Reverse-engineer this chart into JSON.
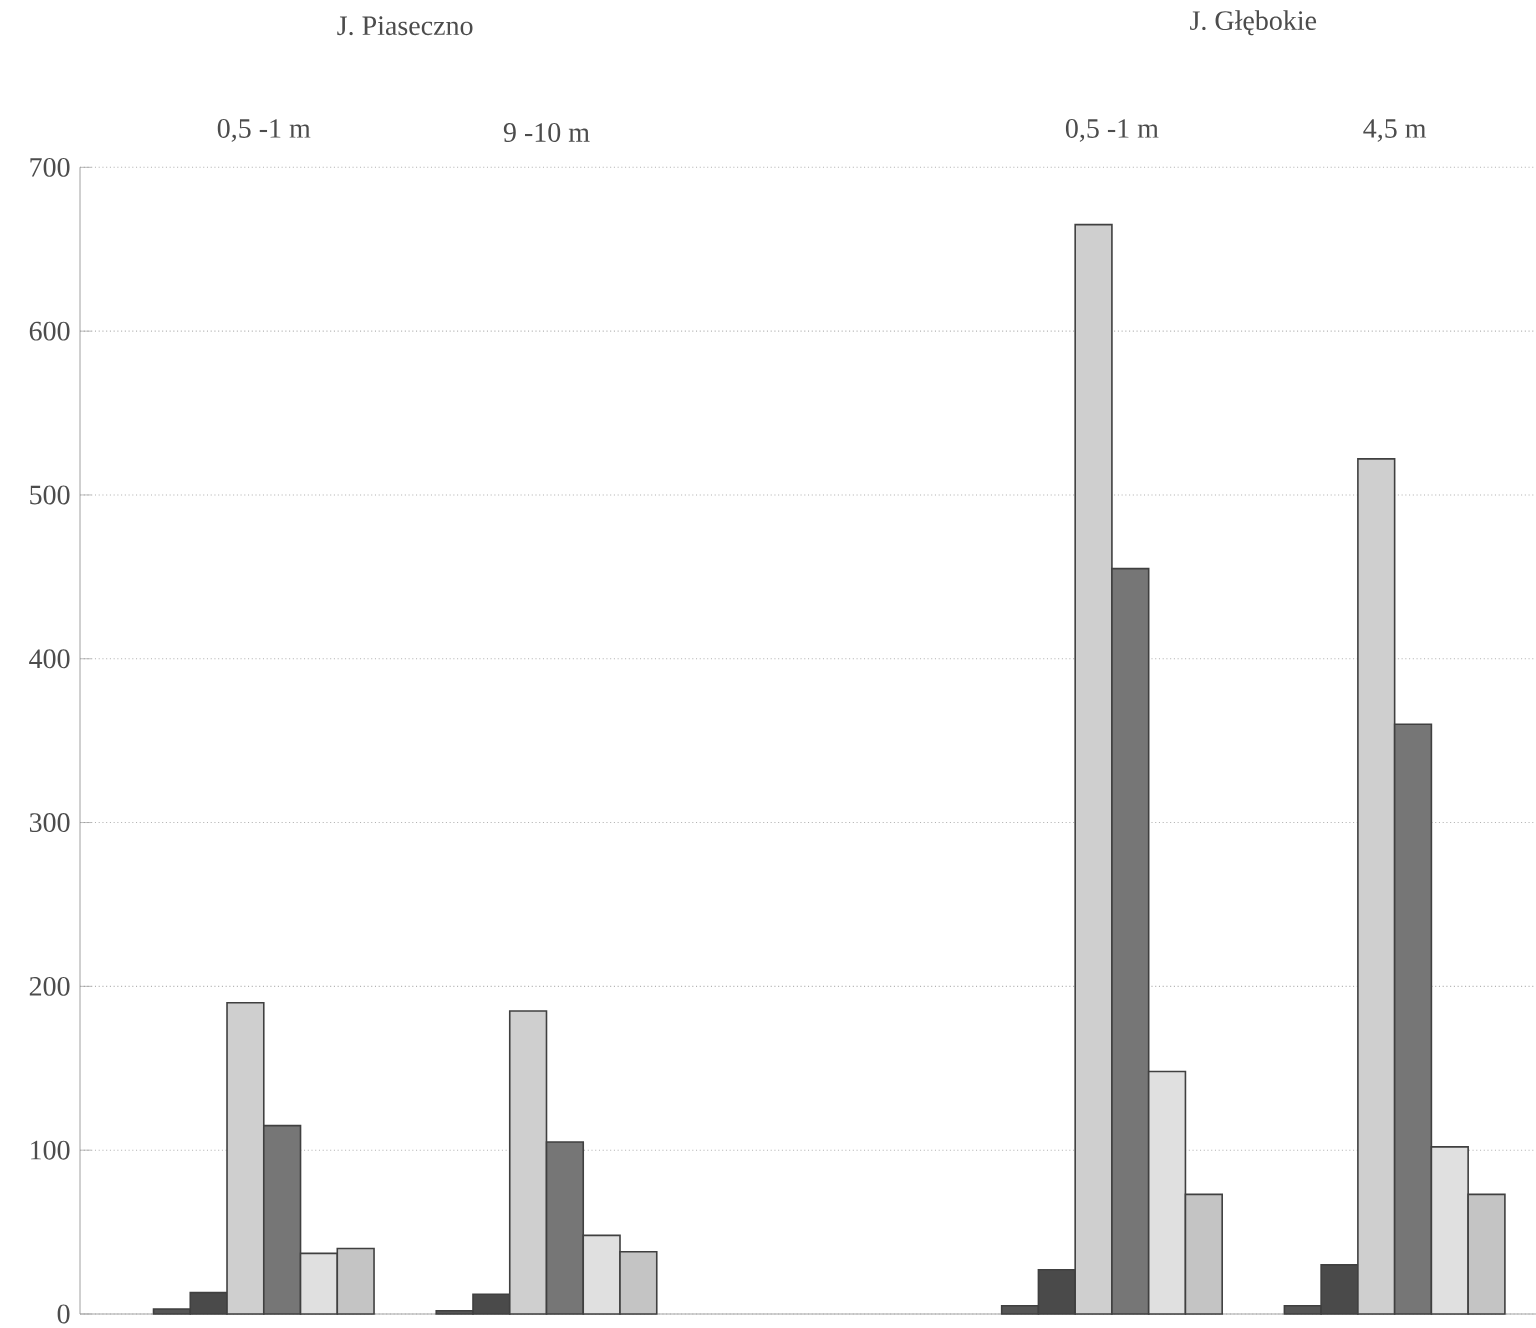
{
  "chart_data": {
    "type": "bar",
    "annotations": [
      "J. Piaseczno",
      "J. Głębokie"
    ],
    "categories": [
      "0,5 -1 m",
      "9 -10 m",
      null,
      "0,5 -1 m",
      "4,5 m"
    ],
    "series": [
      {
        "color": "#555555",
        "values": [
          3,
          2,
          null,
          5,
          5
        ]
      },
      {
        "color": "#4a4a4a",
        "values": [
          13,
          12,
          null,
          27,
          30
        ]
      },
      {
        "color": "#cfcfcf",
        "values": [
          190,
          185,
          null,
          665,
          522
        ]
      },
      {
        "color": "#767676",
        "values": [
          115,
          105,
          null,
          455,
          360
        ]
      },
      {
        "color": "#e0e0e0",
        "values": [
          37,
          48,
          null,
          148,
          102
        ]
      },
      {
        "color": "#c4c4c4",
        "values": [
          40,
          38,
          null,
          73,
          73
        ]
      }
    ],
    "ylim": [
      0,
      700
    ],
    "yticks": [
      0,
      100,
      200,
      300,
      400,
      500,
      600,
      700
    ],
    "grid": "y"
  }
}
